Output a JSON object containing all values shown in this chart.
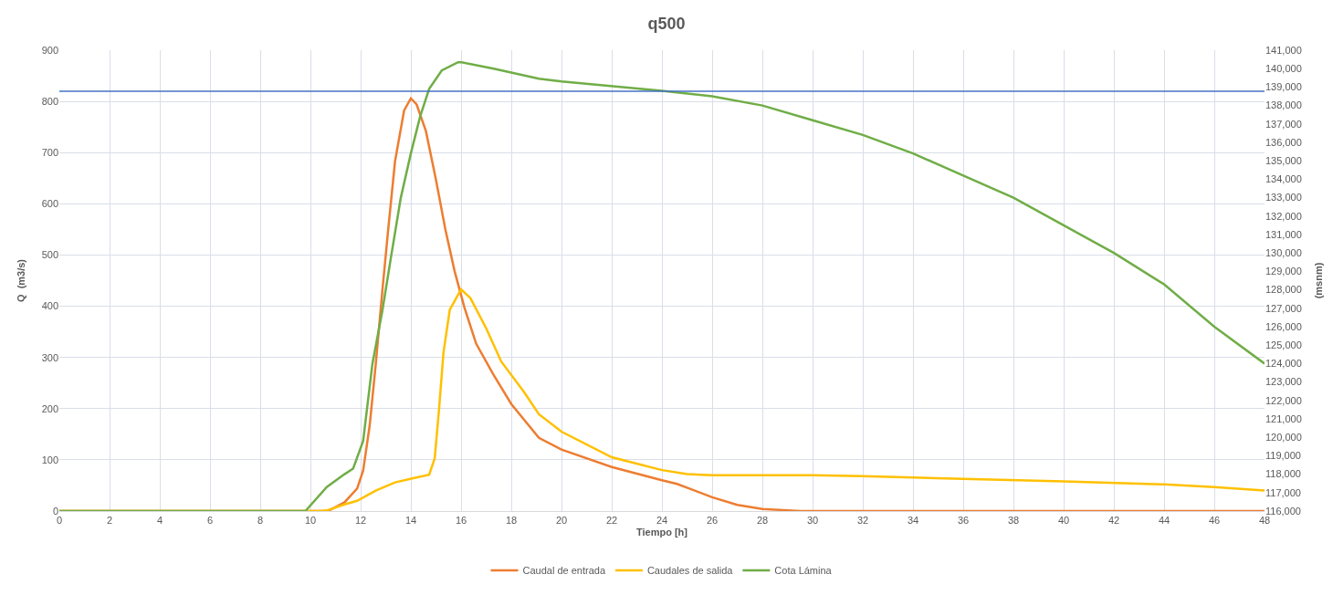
{
  "chart_data": {
    "type": "line",
    "title": "q500",
    "xlabel": "Tiempo [h]",
    "ylabel": "Q  (m3/s)",
    "y2label": "(msnm)",
    "xlim": [
      0,
      48
    ],
    "xticks": [
      0,
      2,
      4,
      6,
      8,
      10,
      12,
      14,
      16,
      18,
      20,
      22,
      24,
      26,
      28,
      30,
      32,
      34,
      36,
      38,
      40,
      42,
      44,
      46,
      48
    ],
    "ylim": [
      0,
      900
    ],
    "yticks": [
      0,
      100,
      200,
      300,
      400,
      500,
      600,
      700,
      800,
      900
    ],
    "y2lim": [
      116000,
      141000
    ],
    "y2ticks": [
      {
        "value": 116000,
        "label": "116,000"
      },
      {
        "value": 117000,
        "label": "117,000"
      },
      {
        "value": 118000,
        "label": "118,000"
      },
      {
        "value": 119000,
        "label": "119,000"
      },
      {
        "value": 120000,
        "label": "120,000"
      },
      {
        "value": 121000,
        "label": "121,000"
      },
      {
        "value": 122000,
        "label": "122,000"
      },
      {
        "value": 123000,
        "label": "123,000"
      },
      {
        "value": 124000,
        "label": "124,000"
      },
      {
        "value": 125000,
        "label": "125,000"
      },
      {
        "value": 126000,
        "label": "126,000"
      },
      {
        "value": 127000,
        "label": "127,000"
      },
      {
        "value": 128000,
        "label": "128,000"
      },
      {
        "value": 129000,
        "label": "129,000"
      },
      {
        "value": 130000,
        "label": "130,000"
      },
      {
        "value": 131000,
        "label": "131,000"
      },
      {
        "value": 132000,
        "label": "132,000"
      },
      {
        "value": 133000,
        "label": "133,000"
      },
      {
        "value": 134000,
        "label": "134,000"
      },
      {
        "value": 135000,
        "label": "135,000"
      },
      {
        "value": 136000,
        "label": "136,000"
      },
      {
        "value": 137000,
        "label": "137,000"
      },
      {
        "value": 138000,
        "label": "138,000"
      },
      {
        "value": 139000,
        "label": "139,000"
      },
      {
        "value": 140000,
        "label": "140,000"
      },
      {
        "value": 141000,
        "label": "141,000"
      }
    ],
    "grid": true,
    "legend": "bottom",
    "marker": "none",
    "line_style": "solid",
    "ref_lines": [
      {
        "axis": "y",
        "value": 820,
        "color": "#4472c4"
      }
    ],
    "series": [
      {
        "name": "Caudal de entrada",
        "color": "#ed7d31",
        "x": [
          0,
          10.7,
          11.36,
          11.86,
          12.1,
          12.36,
          12.6,
          12.87,
          13.1,
          13.37,
          13.73,
          14.0,
          14.23,
          14.6,
          15.0,
          15.37,
          15.74,
          16.13,
          16.6,
          17.27,
          18.0,
          19.1,
          20,
          22,
          24,
          24.6,
          26,
          27,
          28,
          29.5,
          48
        ],
        "values": [
          0,
          0,
          17,
          44,
          79,
          167,
          286,
          433,
          551,
          683,
          782,
          806,
          794,
          742,
          647,
          551,
          469,
          398,
          327,
          268,
          209,
          143,
          120,
          86,
          60,
          53,
          27,
          12,
          4,
          0,
          0
        ]
      },
      {
        "name": "Caudales de salida",
        "color": "#ffc000",
        "x": [
          0,
          10.4,
          10.7,
          11.36,
          11.86,
          12.6,
          13.37,
          14.1,
          14.73,
          14.95,
          15.12,
          15.3,
          15.55,
          16.0,
          16.37,
          17.0,
          17.6,
          18.5,
          19.1,
          20,
          22,
          24,
          25,
          26,
          30,
          32,
          36,
          40,
          44,
          46,
          48
        ],
        "values": [
          0,
          0,
          2,
          13,
          20,
          40,
          56,
          64,
          71,
          103,
          197,
          310,
          393,
          433,
          416,
          357,
          292,
          233,
          189,
          155,
          105,
          80,
          72,
          70,
          70,
          68,
          63,
          58,
          52,
          47,
          40
        ]
      },
      {
        "name": "Cota Lámina",
        "color": "#70ad47",
        "axis": "y2",
        "x": [
          0,
          9.8,
          10.65,
          11.36,
          11.7,
          12.1,
          12.47,
          12.87,
          13.2,
          13.6,
          14.0,
          14.37,
          14.73,
          15.23,
          15.88,
          16,
          17.3,
          19.1,
          20,
          24,
          26,
          28,
          30,
          32,
          34,
          36,
          38,
          40,
          42,
          44,
          46,
          48
        ],
        "values": [
          116000,
          116000,
          117300,
          118000,
          118300,
          119800,
          124000,
          126900,
          129700,
          133000,
          135400,
          137400,
          138900,
          139900,
          140350,
          140350,
          140000,
          139450,
          139300,
          138800,
          138500,
          138000,
          137200,
          136400,
          135400,
          134200,
          133000,
          131500,
          130000,
          128300,
          126000,
          124000
        ]
      }
    ]
  }
}
